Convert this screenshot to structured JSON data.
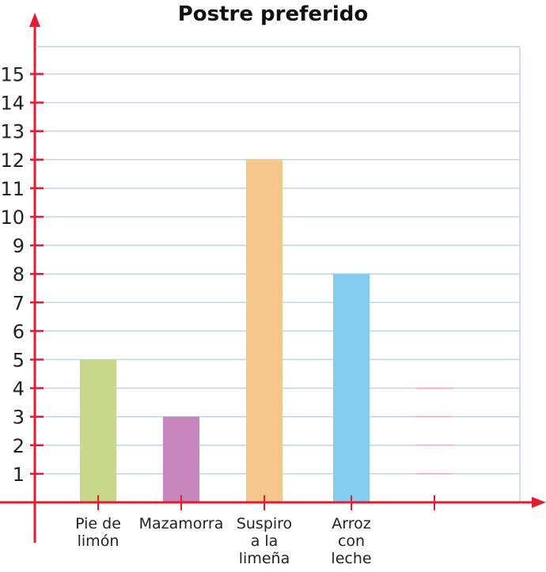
{
  "chart_data": {
    "type": "bar",
    "title": "Postre preferido",
    "xlabel": "",
    "ylabel": "",
    "ylim": [
      0,
      15
    ],
    "yticks": [
      1,
      2,
      3,
      4,
      5,
      6,
      7,
      8,
      9,
      10,
      11,
      12,
      13,
      14,
      15
    ],
    "grid": true,
    "categories": [
      [
        "Pie de",
        "limón"
      ],
      [
        "Mazamorra"
      ],
      [
        "Suspiro",
        "a la",
        "limeña"
      ],
      [
        "Arroz",
        "con",
        "leche"
      ],
      [
        ""
      ]
    ],
    "values": [
      5,
      3,
      12,
      8,
      0
    ],
    "bar_colors": [
      "#c9d78a",
      "#c785bd",
      "#f6c78c",
      "#82cdef",
      "#ffffff"
    ],
    "axis_color": "#e31c33",
    "grid_color": "#c2d3e6",
    "unfinished_bar": {
      "category_index": 4,
      "guide_levels": [
        1,
        2,
        3,
        4
      ],
      "color": "#f2a3ac"
    }
  }
}
